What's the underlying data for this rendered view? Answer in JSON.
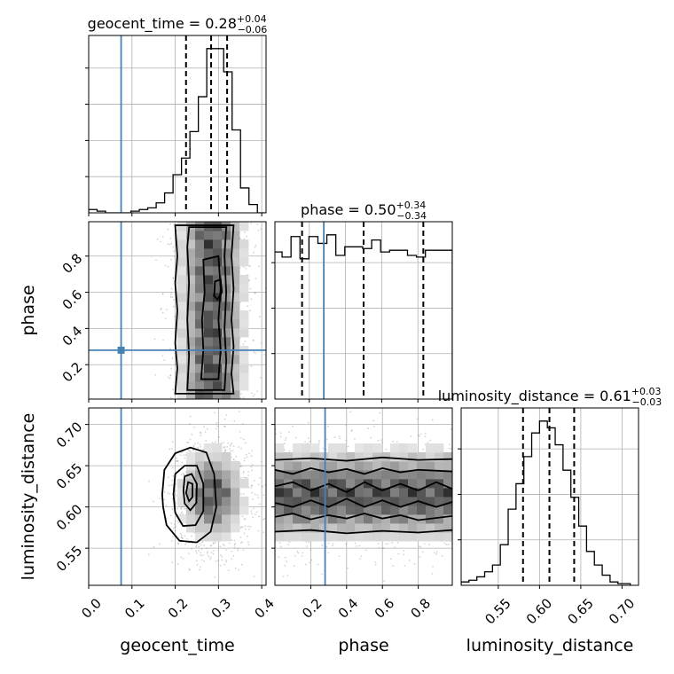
{
  "chart_data": {
    "type": "corner",
    "parameters": [
      "geocent_time",
      "phase",
      "luminosity_distance"
    ],
    "truths": {
      "geocent_time": 0.075,
      "phase": 0.28,
      "luminosity_distance": null
    },
    "diagonal": [
      {
        "param": "geocent_time",
        "title": {
          "name": "geocent_time",
          "median": "0.28",
          "upper": "+0.04",
          "lower": "−0.06"
        },
        "quantiles": [
          0.225,
          0.283,
          0.32
        ],
        "bin_edges": [
          0.0,
          0.0195,
          0.039,
          0.0585,
          0.078,
          0.0975,
          0.117,
          0.1365,
          0.156,
          0.1755,
          0.195,
          0.2145,
          0.234,
          0.2535,
          0.273,
          0.2925,
          0.312,
          0.3315,
          0.351,
          0.3705,
          0.39,
          0.41
        ],
        "counts": [
          2,
          1,
          0,
          0,
          0,
          1,
          2,
          3,
          6,
          12,
          23,
          33,
          49,
          70,
          99,
          99,
          85,
          50,
          15,
          5,
          0
        ]
      },
      {
        "param": "phase",
        "title": {
          "name": "phase",
          "median": "0.50",
          "upper": "+0.34",
          "lower": "−0.34"
        },
        "quantiles": [
          0.16,
          0.5,
          0.83
        ],
        "bin_edges": [
          0.0,
          0.0495,
          0.099,
          0.1485,
          0.198,
          0.2475,
          0.297,
          0.3465,
          0.396,
          0.4455,
          0.495,
          0.5445,
          0.594,
          0.6435,
          0.693,
          0.7425,
          0.792,
          0.8415,
          0.891,
          0.9405,
          0.99
        ],
        "counts": [
          86,
          83,
          95,
          82,
          95,
          91,
          96,
          84,
          89,
          89,
          88,
          93,
          86,
          87,
          87,
          84,
          83,
          87,
          87,
          87
        ]
      },
      {
        "param": "luminosity_distance",
        "title": {
          "name": "luminosity_distance",
          "median": "0.61",
          "upper": "+0.03",
          "lower": "−0.03"
        },
        "quantiles": [
          0.58,
          0.612,
          0.642
        ],
        "bin_edges": [
          0.505,
          0.5145,
          0.524,
          0.5335,
          0.543,
          0.5525,
          0.562,
          0.5715,
          0.581,
          0.5905,
          0.6,
          0.6095,
          0.619,
          0.6285,
          0.638,
          0.6475,
          0.657,
          0.6665,
          0.676,
          0.6855,
          0.695,
          0.71
        ],
        "counts": [
          2,
          3,
          5,
          8,
          12,
          24,
          45,
          60,
          76,
          90,
          97,
          93,
          83,
          68,
          52,
          35,
          20,
          12,
          6,
          2,
          1
        ]
      }
    ],
    "pairs": [
      {
        "x": "geocent_time",
        "y": "phase",
        "xlim": [
          0.0,
          0.41
        ],
        "ylim": [
          0.01,
          0.99
        ],
        "core": {
          "mx": 0.285,
          "sx": 0.04,
          "my": 0.5,
          "sy": 0.45
        },
        "contours": [
          [
            [
              0.2,
              0.04
            ],
            [
              0.205,
              0.18
            ],
            [
              0.2,
              0.32
            ],
            [
              0.205,
              0.5
            ],
            [
              0.2,
              0.65
            ],
            [
              0.205,
              0.8
            ],
            [
              0.2,
              0.97
            ],
            [
              0.335,
              0.97
            ],
            [
              0.33,
              0.8
            ],
            [
              0.335,
              0.62
            ],
            [
              0.33,
              0.45
            ],
            [
              0.335,
              0.3
            ],
            [
              0.33,
              0.15
            ],
            [
              0.335,
              0.04
            ]
          ],
          [
            [
              0.228,
              0.06
            ],
            [
              0.232,
              0.25
            ],
            [
              0.228,
              0.45
            ],
            [
              0.232,
              0.65
            ],
            [
              0.228,
              0.85
            ],
            [
              0.232,
              0.96
            ],
            [
              0.318,
              0.96
            ],
            [
              0.314,
              0.8
            ],
            [
              0.318,
              0.6
            ],
            [
              0.314,
              0.4
            ],
            [
              0.318,
              0.22
            ],
            [
              0.314,
              0.06
            ]
          ],
          [
            [
              0.26,
              0.12
            ],
            [
              0.265,
              0.28
            ],
            [
              0.262,
              0.45
            ],
            [
              0.268,
              0.6
            ],
            [
              0.265,
              0.78
            ],
            [
              0.3,
              0.8
            ],
            [
              0.305,
              0.62
            ],
            [
              0.3,
              0.45
            ],
            [
              0.305,
              0.28
            ],
            [
              0.3,
              0.12
            ]
          ],
          [
            [
              0.29,
              0.58
            ],
            [
              0.292,
              0.66
            ],
            [
              0.305,
              0.67
            ],
            [
              0.308,
              0.6
            ],
            [
              0.298,
              0.56
            ]
          ]
        ]
      },
      {
        "x": "geocent_time",
        "y": "luminosity_distance",
        "xlim": [
          0.0,
          0.41
        ],
        "ylim": [
          0.505,
          0.72
        ],
        "core": {
          "mx": 0.287,
          "sx": 0.04,
          "my": 0.615,
          "sy": 0.03
        },
        "contours": [
          [
            [
              0.17,
              0.615
            ],
            [
              0.175,
              0.645
            ],
            [
              0.2,
              0.665
            ],
            [
              0.235,
              0.672
            ],
            [
              0.272,
              0.666
            ],
            [
              0.29,
              0.64
            ],
            [
              0.295,
              0.6
            ],
            [
              0.282,
              0.57
            ],
            [
              0.25,
              0.557
            ],
            [
              0.21,
              0.559
            ],
            [
              0.18,
              0.578
            ],
            [
              0.172,
              0.6
            ]
          ],
          [
            [
              0.196,
              0.615
            ],
            [
              0.2,
              0.64
            ],
            [
              0.222,
              0.65
            ],
            [
              0.25,
              0.65
            ],
            [
              0.265,
              0.628
            ],
            [
              0.265,
              0.595
            ],
            [
              0.247,
              0.578
            ],
            [
              0.218,
              0.577
            ],
            [
              0.2,
              0.593
            ]
          ],
          [
            [
              0.219,
              0.62
            ],
            [
              0.222,
              0.637
            ],
            [
              0.238,
              0.64
            ],
            [
              0.25,
              0.628
            ],
            [
              0.249,
              0.605
            ],
            [
              0.235,
              0.596
            ],
            [
              0.222,
              0.604
            ]
          ],
          [
            [
              0.225,
              0.617
            ],
            [
              0.23,
              0.63
            ],
            [
              0.24,
              0.628
            ],
            [
              0.24,
              0.612
            ],
            [
              0.232,
              0.607
            ]
          ]
        ]
      },
      {
        "x": "phase",
        "y": "luminosity_distance",
        "xlim": [
          0.0,
          0.99
        ],
        "ylim": [
          0.505,
          0.72
        ],
        "core": {
          "mx": 0.5,
          "sx": 0.45,
          "my": 0.615,
          "sy": 0.03
        },
        "contours": [
          [
            [
              0.0,
              0.657
            ],
            [
              0.2,
              0.659
            ],
            [
              0.4,
              0.656
            ],
            [
              0.6,
              0.66
            ],
            [
              0.8,
              0.657
            ],
            [
              0.99,
              0.658
            ]
          ],
          [
            [
              0.0,
              0.57
            ],
            [
              0.2,
              0.572
            ],
            [
              0.4,
              0.568
            ],
            [
              0.6,
              0.571
            ],
            [
              0.8,
              0.569
            ],
            [
              0.99,
              0.572
            ]
          ],
          [
            [
              0.0,
              0.645
            ],
            [
              0.1,
              0.64
            ],
            [
              0.2,
              0.647
            ],
            [
              0.3,
              0.642
            ],
            [
              0.4,
              0.646
            ],
            [
              0.5,
              0.64
            ],
            [
              0.6,
              0.647
            ],
            [
              0.7,
              0.642
            ],
            [
              0.8,
              0.645
            ],
            [
              0.99,
              0.643
            ]
          ],
          [
            [
              0.0,
              0.588
            ],
            [
              0.1,
              0.592
            ],
            [
              0.2,
              0.585
            ],
            [
              0.3,
              0.59
            ],
            [
              0.4,
              0.586
            ],
            [
              0.5,
              0.592
            ],
            [
              0.6,
              0.586
            ],
            [
              0.7,
              0.59
            ],
            [
              0.8,
              0.584
            ],
            [
              0.99,
              0.589
            ]
          ],
          [
            [
              0.0,
              0.625
            ],
            [
              0.1,
              0.63
            ],
            [
              0.2,
              0.62
            ],
            [
              0.3,
              0.628
            ],
            [
              0.4,
              0.618
            ],
            [
              0.5,
              0.63
            ],
            [
              0.6,
              0.62
            ],
            [
              0.7,
              0.628
            ],
            [
              0.8,
              0.62
            ],
            [
              0.9,
              0.63
            ],
            [
              0.99,
              0.622
            ]
          ],
          [
            [
              0.0,
              0.605
            ],
            [
              0.1,
              0.6
            ],
            [
              0.2,
              0.608
            ],
            [
              0.3,
              0.6
            ],
            [
              0.4,
              0.61
            ],
            [
              0.5,
              0.6
            ],
            [
              0.6,
              0.608
            ],
            [
              0.7,
              0.6
            ],
            [
              0.8,
              0.607
            ],
            [
              0.9,
              0.6
            ],
            [
              0.99,
              0.606
            ]
          ]
        ]
      }
    ],
    "axes": {
      "geocent_time": {
        "range": [
          0.0,
          0.41
        ],
        "ticks": [
          0.0,
          0.1,
          0.2,
          0.3,
          0.4
        ],
        "tick_labels": [
          "0.0",
          "0.1",
          "0.2",
          "0.3",
          "0.4"
        ],
        "label": "geocent_time"
      },
      "phase": {
        "range": [
          0.01,
          0.99
        ],
        "ticks": [
          0.2,
          0.4,
          0.6,
          0.8
        ],
        "tick_labels": [
          "0.2",
          "0.4",
          "0.6",
          "0.8"
        ],
        "label": "phase"
      },
      "luminosity_distance": {
        "range": [
          0.505,
          0.72
        ],
        "ticks": [
          0.55,
          0.6,
          0.65,
          0.7
        ],
        "tick_labels": [
          "0.55",
          "0.60",
          "0.65",
          "0.70"
        ],
        "label": "luminosity_distance"
      }
    },
    "grid": true,
    "colors": {
      "truth": "#4682b4",
      "contour": "#000000",
      "hist": "#000000",
      "scatter": "#808080"
    }
  }
}
